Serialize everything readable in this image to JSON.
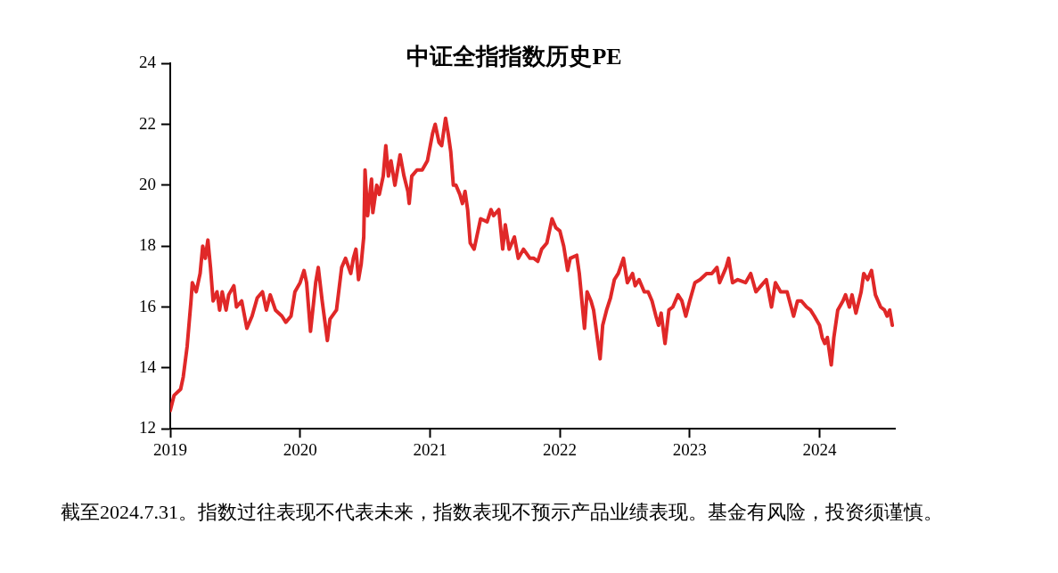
{
  "chart_data": {
    "type": "line",
    "title": "中证全指指数历史PE",
    "annotations": [
      "截至2024.7.31。指数过往表现不代表未来，指数表现不预示产品业绩表现。基金有风险，投资须谨慎。"
    ],
    "xlim": [
      2019,
      2024.58
    ],
    "xticks": [
      2019,
      2020,
      2021,
      2022,
      2023,
      2024
    ],
    "ylim": [
      12,
      24
    ],
    "yticks": [
      12,
      14,
      16,
      18,
      20,
      22,
      24
    ],
    "grid": false,
    "legend": false,
    "marker": "none",
    "line_style": "solid",
    "series": [
      {
        "color": "#e02828",
        "x": [
          2019.0,
          2019.03,
          2019.08,
          2019.1,
          2019.13,
          2019.16,
          2019.17,
          2019.2,
          2019.23,
          2019.25,
          2019.27,
          2019.29,
          2019.31,
          2019.33,
          2019.36,
          2019.38,
          2019.4,
          2019.43,
          2019.45,
          2019.49,
          2019.51,
          2019.55,
          2019.59,
          2019.63,
          2019.67,
          2019.71,
          2019.74,
          2019.77,
          2019.81,
          2019.86,
          2019.89,
          2019.93,
          2019.96,
          2020.0,
          2020.03,
          2020.05,
          2020.08,
          2020.12,
          2020.14,
          2020.17,
          2020.21,
          2020.23,
          2020.28,
          2020.32,
          2020.35,
          2020.39,
          2020.41,
          2020.43,
          2020.45,
          2020.47,
          2020.49,
          2020.5,
          2020.52,
          2020.55,
          2020.56,
          2020.59,
          2020.61,
          2020.64,
          2020.66,
          2020.68,
          2020.7,
          2020.73,
          2020.77,
          2020.8,
          2020.83,
          2020.84,
          2020.86,
          2020.9,
          2020.94,
          2020.98,
          2021.02,
          2021.04,
          2021.07,
          2021.09,
          2021.12,
          2021.14,
          2021.16,
          2021.18,
          2021.2,
          2021.23,
          2021.25,
          2021.27,
          2021.29,
          2021.31,
          2021.34,
          2021.36,
          2021.39,
          2021.44,
          2021.47,
          2021.49,
          2021.53,
          2021.56,
          2021.58,
          2021.61,
          2021.65,
          2021.68,
          2021.72,
          2021.77,
          2021.8,
          2021.83,
          2021.86,
          2021.9,
          2021.94,
          2021.97,
          2022.0,
          2022.03,
          2022.06,
          2022.08,
          2022.13,
          2022.15,
          2022.19,
          2022.21,
          2022.24,
          2022.26,
          2022.31,
          2022.33,
          2022.36,
          2022.39,
          2022.42,
          2022.45,
          2022.49,
          2022.52,
          2022.56,
          2022.58,
          2022.61,
          2022.65,
          2022.68,
          2022.71,
          2022.74,
          2022.76,
          2022.78,
          2022.81,
          2022.84,
          2022.87,
          2022.91,
          2022.94,
          2022.97,
          2023.0,
          2023.04,
          2023.08,
          2023.13,
          2023.17,
          2023.21,
          2023.23,
          2023.28,
          2023.3,
          2023.33,
          2023.37,
          2023.43,
          2023.47,
          2023.51,
          2023.55,
          2023.59,
          2023.63,
          2023.66,
          2023.7,
          2023.75,
          2023.8,
          2023.83,
          2023.86,
          2023.9,
          2023.93,
          2023.96,
          2024.0,
          2024.02,
          2024.04,
          2024.06,
          2024.09,
          2024.11,
          2024.14,
          2024.18,
          2024.2,
          2024.23,
          2024.25,
          2024.28,
          2024.32,
          2024.34,
          2024.37,
          2024.4,
          2024.43,
          2024.47,
          2024.5,
          2024.52,
          2024.54,
          2024.56
        ],
        "values": [
          12.6,
          13.1,
          13.3,
          13.7,
          14.7,
          16.2,
          16.8,
          16.5,
          17.1,
          18.0,
          17.6,
          18.2,
          17.3,
          16.2,
          16.5,
          15.9,
          16.5,
          15.9,
          16.4,
          16.7,
          16.0,
          16.2,
          15.3,
          15.7,
          16.3,
          16.5,
          15.9,
          16.4,
          15.9,
          15.7,
          15.5,
          15.7,
          16.5,
          16.8,
          17.2,
          16.8,
          15.2,
          16.8,
          17.3,
          16.2,
          14.9,
          15.6,
          15.9,
          17.3,
          17.6,
          17.1,
          17.6,
          17.9,
          16.9,
          17.4,
          18.3,
          20.5,
          19.0,
          20.2,
          19.1,
          20.0,
          19.7,
          20.3,
          21.3,
          20.3,
          20.8,
          20.0,
          21.0,
          20.3,
          19.8,
          19.4,
          20.3,
          20.5,
          20.5,
          20.8,
          21.7,
          22.0,
          21.4,
          21.3,
          22.2,
          21.7,
          21.1,
          20.0,
          20.0,
          19.7,
          19.4,
          19.8,
          19.2,
          18.1,
          17.9,
          18.3,
          18.9,
          18.8,
          19.2,
          19.0,
          19.2,
          17.9,
          18.7,
          17.9,
          18.3,
          17.6,
          17.9,
          17.6,
          17.6,
          17.5,
          17.9,
          18.1,
          18.9,
          18.6,
          18.5,
          18.0,
          17.2,
          17.6,
          17.7,
          17.1,
          15.3,
          16.5,
          16.2,
          15.9,
          14.3,
          15.4,
          15.9,
          16.3,
          16.9,
          17.1,
          17.6,
          16.8,
          17.1,
          16.7,
          16.9,
          16.5,
          16.5,
          16.2,
          15.7,
          15.4,
          15.8,
          14.8,
          15.9,
          16.0,
          16.4,
          16.2,
          15.7,
          16.2,
          16.8,
          16.9,
          17.1,
          17.1,
          17.3,
          16.8,
          17.3,
          17.6,
          16.8,
          16.9,
          16.8,
          17.1,
          16.5,
          16.7,
          16.9,
          16.0,
          16.8,
          16.5,
          16.5,
          15.7,
          16.2,
          16.2,
          16.0,
          15.9,
          15.7,
          15.4,
          15.0,
          14.8,
          15.0,
          14.1,
          15.0,
          15.9,
          16.2,
          16.4,
          16.0,
          16.4,
          15.8,
          16.5,
          17.1,
          16.9,
          17.2,
          16.4,
          16.0,
          15.9,
          15.7,
          15.9,
          15.4
        ]
      }
    ]
  }
}
